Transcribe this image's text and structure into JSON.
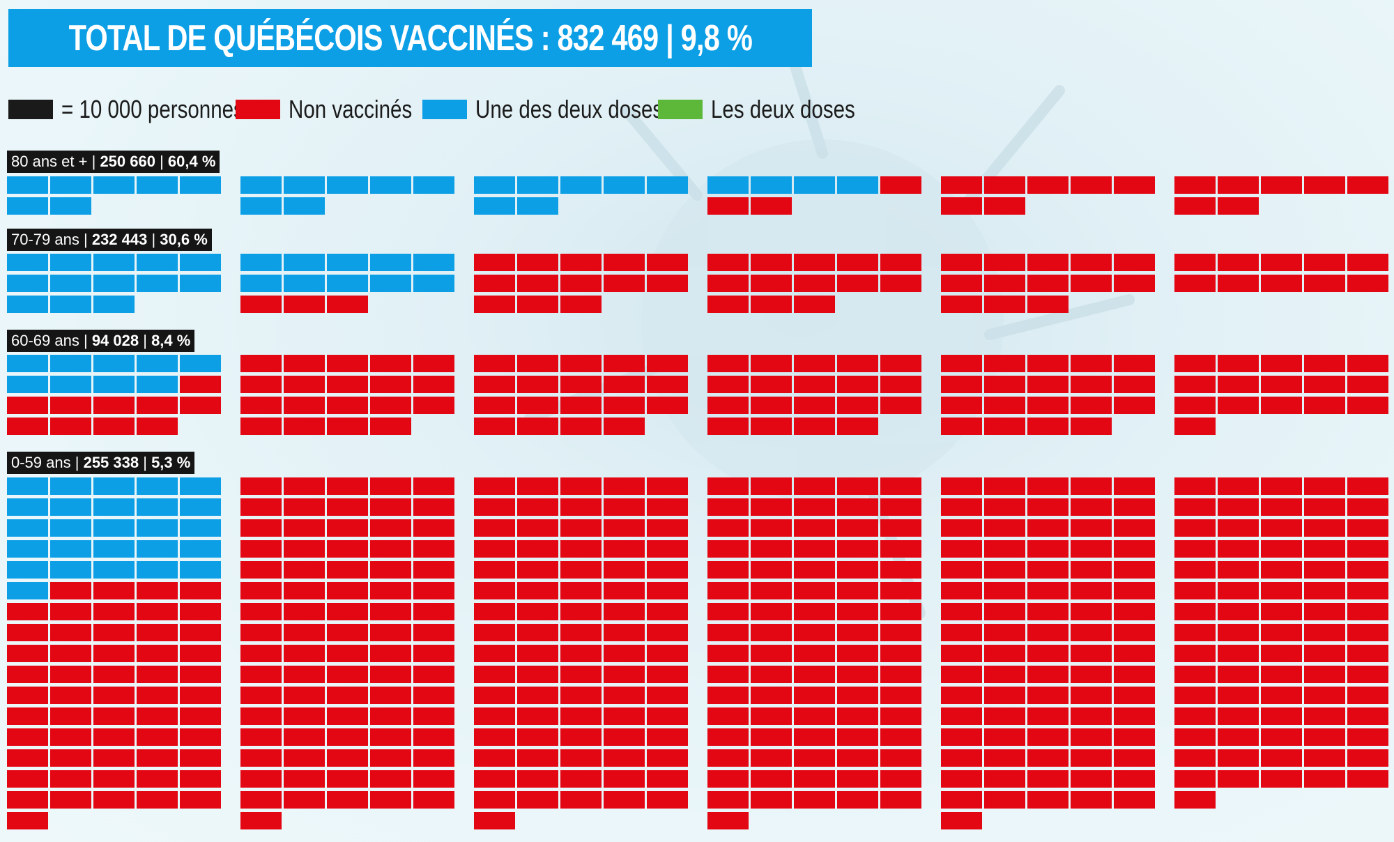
{
  "title": "TOTAL DE QUÉBÉCOIS VACCINÉS : 832 469 | 9,8 %",
  "legend": [
    {
      "label": "= 10 000 personnes",
      "color": "#1a1a1a"
    },
    {
      "label": "Non vaccinés",
      "color": "#e30613"
    },
    {
      "label": "Une des deux doses",
      "color": "#0c9fe6"
    },
    {
      "label": "Les deux doses",
      "color": "#5db83a"
    }
  ],
  "colors": {
    "unvaccinated": "#e30613",
    "one_dose": "#0c9fe6",
    "two_doses": "#5db83a"
  },
  "chart_data": {
    "type": "waffle",
    "unit": "10 000 personnes",
    "groups": [
      {
        "name": "80 ans et +",
        "count_text": "250 660",
        "pct_text": "60,4 %",
        "one_dose_squares": 25,
        "unvaccinated_squares": 17
      },
      {
        "name": "70-79 ans",
        "count_text": "232 443",
        "pct_text": "30,6 %",
        "one_dose_squares": 23,
        "unvaccinated_squares": 52
      },
      {
        "name": "60-69 ans",
        "count_text": "94 028",
        "pct_text": "8,4 %",
        "one_dose_squares": 9,
        "unvaccinated_squares": 102
      },
      {
        "name": "0-59 ans",
        "count_text": "255 338",
        "pct_text": "5,3 %",
        "one_dose_squares": 26,
        "unvaccinated_squares": 455
      }
    ]
  }
}
